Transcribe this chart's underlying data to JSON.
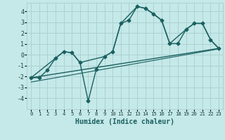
{
  "xlabel": "Humidex (Indice chaleur)",
  "background_color": "#c5e8e8",
  "grid_color": "#a8cece",
  "line_color": "#1a6060",
  "xlim": [
    -0.5,
    23.5
  ],
  "ylim": [
    -5.0,
    4.8
  ],
  "yticks": [
    -4,
    -3,
    -2,
    -1,
    0,
    1,
    2,
    3,
    4
  ],
  "xticks": [
    0,
    1,
    2,
    3,
    4,
    5,
    6,
    7,
    8,
    9,
    10,
    11,
    12,
    13,
    14,
    15,
    16,
    17,
    18,
    19,
    20,
    21,
    22,
    23
  ],
  "series1_x": [
    0,
    1,
    2,
    3,
    4,
    5,
    6,
    7,
    8,
    9,
    10,
    11,
    12,
    13,
    14,
    15,
    16,
    17,
    18,
    19,
    20,
    21,
    22,
    23
  ],
  "series1_y": [
    -2.1,
    -2.1,
    -1.4,
    -0.3,
    0.3,
    0.2,
    -0.7,
    -4.25,
    -1.3,
    -0.15,
    0.3,
    2.9,
    3.2,
    4.45,
    4.3,
    3.8,
    3.2,
    1.05,
    1.05,
    2.35,
    2.9,
    2.9,
    1.4,
    0.6
  ],
  "series2_x": [
    0,
    3,
    4,
    5,
    6,
    9,
    10,
    11,
    13,
    14,
    16,
    17,
    19,
    20,
    21,
    22,
    23
  ],
  "series2_y": [
    -2.1,
    -0.3,
    0.3,
    0.2,
    -0.7,
    -0.15,
    0.3,
    2.9,
    4.45,
    4.3,
    3.2,
    1.05,
    2.35,
    2.9,
    2.9,
    1.4,
    0.6
  ],
  "series3_x": [
    0,
    23
  ],
  "series3_y": [
    -2.1,
    0.6
  ],
  "series4_x": [
    0,
    23
  ],
  "series4_y": [
    -2.5,
    0.55
  ]
}
